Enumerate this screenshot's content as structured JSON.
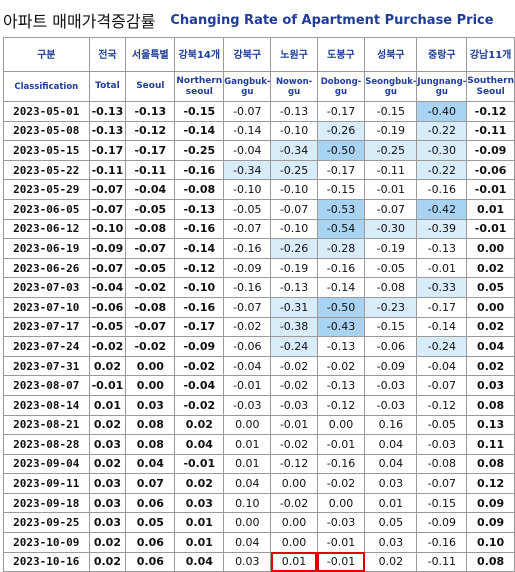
{
  "title": {
    "korean": "아파트 매매가격증감률",
    "english": "Changing Rate of Apartment Purchase Price"
  },
  "columns": [
    {
      "ko": "구분",
      "en": "Classification",
      "en_bold": false
    },
    {
      "ko": "전국",
      "en": "Total",
      "en_bold": true
    },
    {
      "ko": "서울특별",
      "en": "Seoul",
      "en_bold": true
    },
    {
      "ko": "강북14개",
      "en": "Northern seoul",
      "en_bold": true
    },
    {
      "ko": "강북구",
      "en": "Gangbuk-gu",
      "en_bold": false
    },
    {
      "ko": "노원구",
      "en": "Nowon-gu",
      "en_bold": false
    },
    {
      "ko": "도봉구",
      "en": "Dobong-gu",
      "en_bold": false
    },
    {
      "ko": "성북구",
      "en": "Seongbuk-gu",
      "en_bold": false
    },
    {
      "ko": "중랑구",
      "en": "Jungnang-gu",
      "en_bold": false
    },
    {
      "ko": "강남11개",
      "en": "Southern Seoul",
      "en_bold": true
    }
  ],
  "rows": [
    {
      "date": "2023-05-01",
      "values": [
        "-0.13",
        "-0.13",
        "-0.15",
        "-0.07",
        "-0.13",
        "-0.17",
        "-0.15",
        "-0.40",
        "-0.12"
      ],
      "shade": [
        "",
        "",
        "",
        "",
        "",
        "",
        "",
        "mb",
        ""
      ]
    },
    {
      "date": "2023-05-08",
      "values": [
        "-0.13",
        "-0.12",
        "-0.14",
        "-0.14",
        "-0.10",
        "-0.26",
        "-0.19",
        "-0.22",
        "-0.11"
      ],
      "shade": [
        "",
        "",
        "",
        "",
        "",
        "lb",
        "",
        "lb",
        ""
      ]
    },
    {
      "date": "2023-05-15",
      "values": [
        "-0.17",
        "-0.17",
        "-0.25",
        "-0.04",
        "-0.34",
        "-0.50",
        "-0.25",
        "-0.30",
        "-0.09"
      ],
      "shade": [
        "",
        "",
        "",
        "",
        "lb",
        "mb",
        "lb",
        "lb",
        ""
      ]
    },
    {
      "date": "2023-05-22",
      "values": [
        "-0.11",
        "-0.11",
        "-0.16",
        "-0.34",
        "-0.25",
        "-0.17",
        "-0.11",
        "-0.22",
        "-0.06"
      ],
      "shade": [
        "",
        "",
        "",
        "lb",
        "lb",
        "",
        "",
        "lb",
        ""
      ]
    },
    {
      "date": "2023-05-29",
      "values": [
        "-0.07",
        "-0.04",
        "-0.08",
        "-0.10",
        "-0.10",
        "-0.15",
        "-0.01",
        "-0.16",
        "-0.01"
      ],
      "shade": [
        "",
        "",
        "",
        "",
        "",
        "",
        "",
        "",
        ""
      ]
    },
    {
      "date": "2023-06-05",
      "values": [
        "-0.07",
        "-0.05",
        "-0.13",
        "-0.05",
        "-0.07",
        "-0.53",
        "-0.07",
        "-0.42",
        "0.01"
      ],
      "shade": [
        "",
        "",
        "",
        "",
        "",
        "mb",
        "",
        "mb",
        ""
      ]
    },
    {
      "date": "2023-06-12",
      "values": [
        "-0.10",
        "-0.08",
        "-0.16",
        "-0.07",
        "-0.10",
        "-0.54",
        "-0.30",
        "-0.39",
        "-0.01"
      ],
      "shade": [
        "",
        "",
        "",
        "",
        "",
        "mb",
        "lb",
        "lb",
        ""
      ]
    },
    {
      "date": "2023-06-19",
      "values": [
        "-0.09",
        "-0.07",
        "-0.14",
        "-0.16",
        "-0.26",
        "-0.28",
        "-0.19",
        "-0.13",
        "0.00"
      ],
      "shade": [
        "",
        "",
        "",
        "",
        "lb",
        "lb",
        "",
        "",
        ""
      ]
    },
    {
      "date": "2023-06-26",
      "values": [
        "-0.07",
        "-0.05",
        "-0.12",
        "-0.09",
        "-0.19",
        "-0.16",
        "-0.05",
        "-0.01",
        "0.02"
      ],
      "shade": [
        "",
        "",
        "",
        "",
        "",
        "",
        "",
        "",
        ""
      ]
    },
    {
      "date": "2023-07-03",
      "values": [
        "-0.04",
        "-0.02",
        "-0.10",
        "-0.16",
        "-0.13",
        "-0.14",
        "-0.08",
        "-0.33",
        "0.05"
      ],
      "shade": [
        "",
        "",
        "",
        "",
        "",
        "",
        "",
        "lb",
        ""
      ]
    },
    {
      "date": "2023-07-10",
      "values": [
        "-0.06",
        "-0.08",
        "-0.16",
        "-0.07",
        "-0.31",
        "-0.50",
        "-0.23",
        "-0.17",
        "0.00"
      ],
      "shade": [
        "",
        "",
        "",
        "",
        "lb",
        "mb",
        "lb",
        "",
        ""
      ]
    },
    {
      "date": "2023-07-17",
      "values": [
        "-0.05",
        "-0.07",
        "-0.17",
        "-0.02",
        "-0.38",
        "-0.43",
        "-0.15",
        "-0.14",
        "0.02"
      ],
      "shade": [
        "",
        "",
        "",
        "",
        "lb",
        "mb",
        "",
        "",
        ""
      ]
    },
    {
      "date": "2023-07-24",
      "values": [
        "-0.02",
        "-0.02",
        "-0.09",
        "-0.06",
        "-0.24",
        "-0.13",
        "-0.06",
        "-0.24",
        "0.04"
      ],
      "shade": [
        "",
        "",
        "",
        "",
        "lb",
        "",
        "",
        "lb",
        ""
      ]
    },
    {
      "date": "2023-07-31",
      "values": [
        "0.02",
        "0.00",
        "-0.02",
        "-0.04",
        "-0.02",
        "-0.02",
        "-0.09",
        "-0.04",
        "0.02"
      ],
      "shade": [
        "",
        "",
        "",
        "",
        "",
        "",
        "",
        "",
        ""
      ]
    },
    {
      "date": "2023-08-07",
      "values": [
        "-0.01",
        "0.00",
        "-0.04",
        "-0.01",
        "-0.02",
        "-0.13",
        "-0.03",
        "-0.07",
        "0.03"
      ],
      "shade": [
        "",
        "",
        "",
        "",
        "",
        "",
        "",
        "",
        ""
      ]
    },
    {
      "date": "2023-08-14",
      "values": [
        "0.01",
        "0.03",
        "-0.02",
        "-0.03",
        "-0.03",
        "-0.12",
        "-0.03",
        "-0.12",
        "0.08"
      ],
      "shade": [
        "",
        "",
        "",
        "",
        "",
        "",
        "",
        "",
        ""
      ]
    },
    {
      "date": "2023-08-21",
      "values": [
        "0.02",
        "0.08",
        "0.02",
        "0.00",
        "-0.01",
        "0.00",
        "0.16",
        "-0.05",
        "0.13"
      ],
      "shade": [
        "",
        "",
        "",
        "",
        "",
        "",
        "",
        "",
        ""
      ]
    },
    {
      "date": "2023-08-28",
      "values": [
        "0.03",
        "0.08",
        "0.04",
        "0.01",
        "-0.02",
        "-0.01",
        "0.04",
        "-0.03",
        "0.11"
      ],
      "shade": [
        "",
        "",
        "",
        "",
        "",
        "",
        "",
        "",
        ""
      ]
    },
    {
      "date": "2023-09-04",
      "values": [
        "0.02",
        "0.04",
        "-0.01",
        "0.01",
        "-0.12",
        "-0.16",
        "0.04",
        "-0.08",
        "0.08"
      ],
      "shade": [
        "",
        "",
        "",
        "",
        "",
        "",
        "",
        "",
        ""
      ]
    },
    {
      "date": "2023-09-11",
      "values": [
        "0.03",
        "0.07",
        "0.02",
        "0.04",
        "0.00",
        "-0.02",
        "0.03",
        "-0.07",
        "0.12"
      ],
      "shade": [
        "",
        "",
        "",
        "",
        "",
        "",
        "",
        "",
        ""
      ]
    },
    {
      "date": "2023-09-18",
      "values": [
        "0.03",
        "0.06",
        "0.03",
        "0.10",
        "-0.02",
        "0.00",
        "0.01",
        "-0.15",
        "0.09"
      ],
      "shade": [
        "",
        "",
        "",
        "",
        "",
        "",
        "",
        "",
        ""
      ]
    },
    {
      "date": "2023-09-25",
      "values": [
        "0.03",
        "0.05",
        "0.01",
        "0.00",
        "0.00",
        "-0.03",
        "0.05",
        "-0.09",
        "0.09"
      ],
      "shade": [
        "",
        "",
        "",
        "",
        "",
        "",
        "",
        "",
        ""
      ]
    },
    {
      "date": "2023-10-09",
      "values": [
        "0.02",
        "0.06",
        "0.01",
        "0.04",
        "0.00",
        "-0.01",
        "0.03",
        "-0.16",
        "0.10"
      ],
      "shade": [
        "",
        "",
        "",
        "",
        "",
        "",
        "",
        "",
        ""
      ]
    },
    {
      "date": "2023-10-16",
      "values": [
        "0.02",
        "0.06",
        "0.04",
        "0.03",
        "0.01",
        "-0.01",
        "0.02",
        "-0.11",
        "0.08"
      ],
      "shade": [
        "",
        "",
        "",
        "",
        "",
        "",
        "",
        "",
        ""
      ],
      "highlight": [
        false,
        false,
        false,
        false,
        true,
        true,
        false,
        false,
        false
      ]
    }
  ]
}
